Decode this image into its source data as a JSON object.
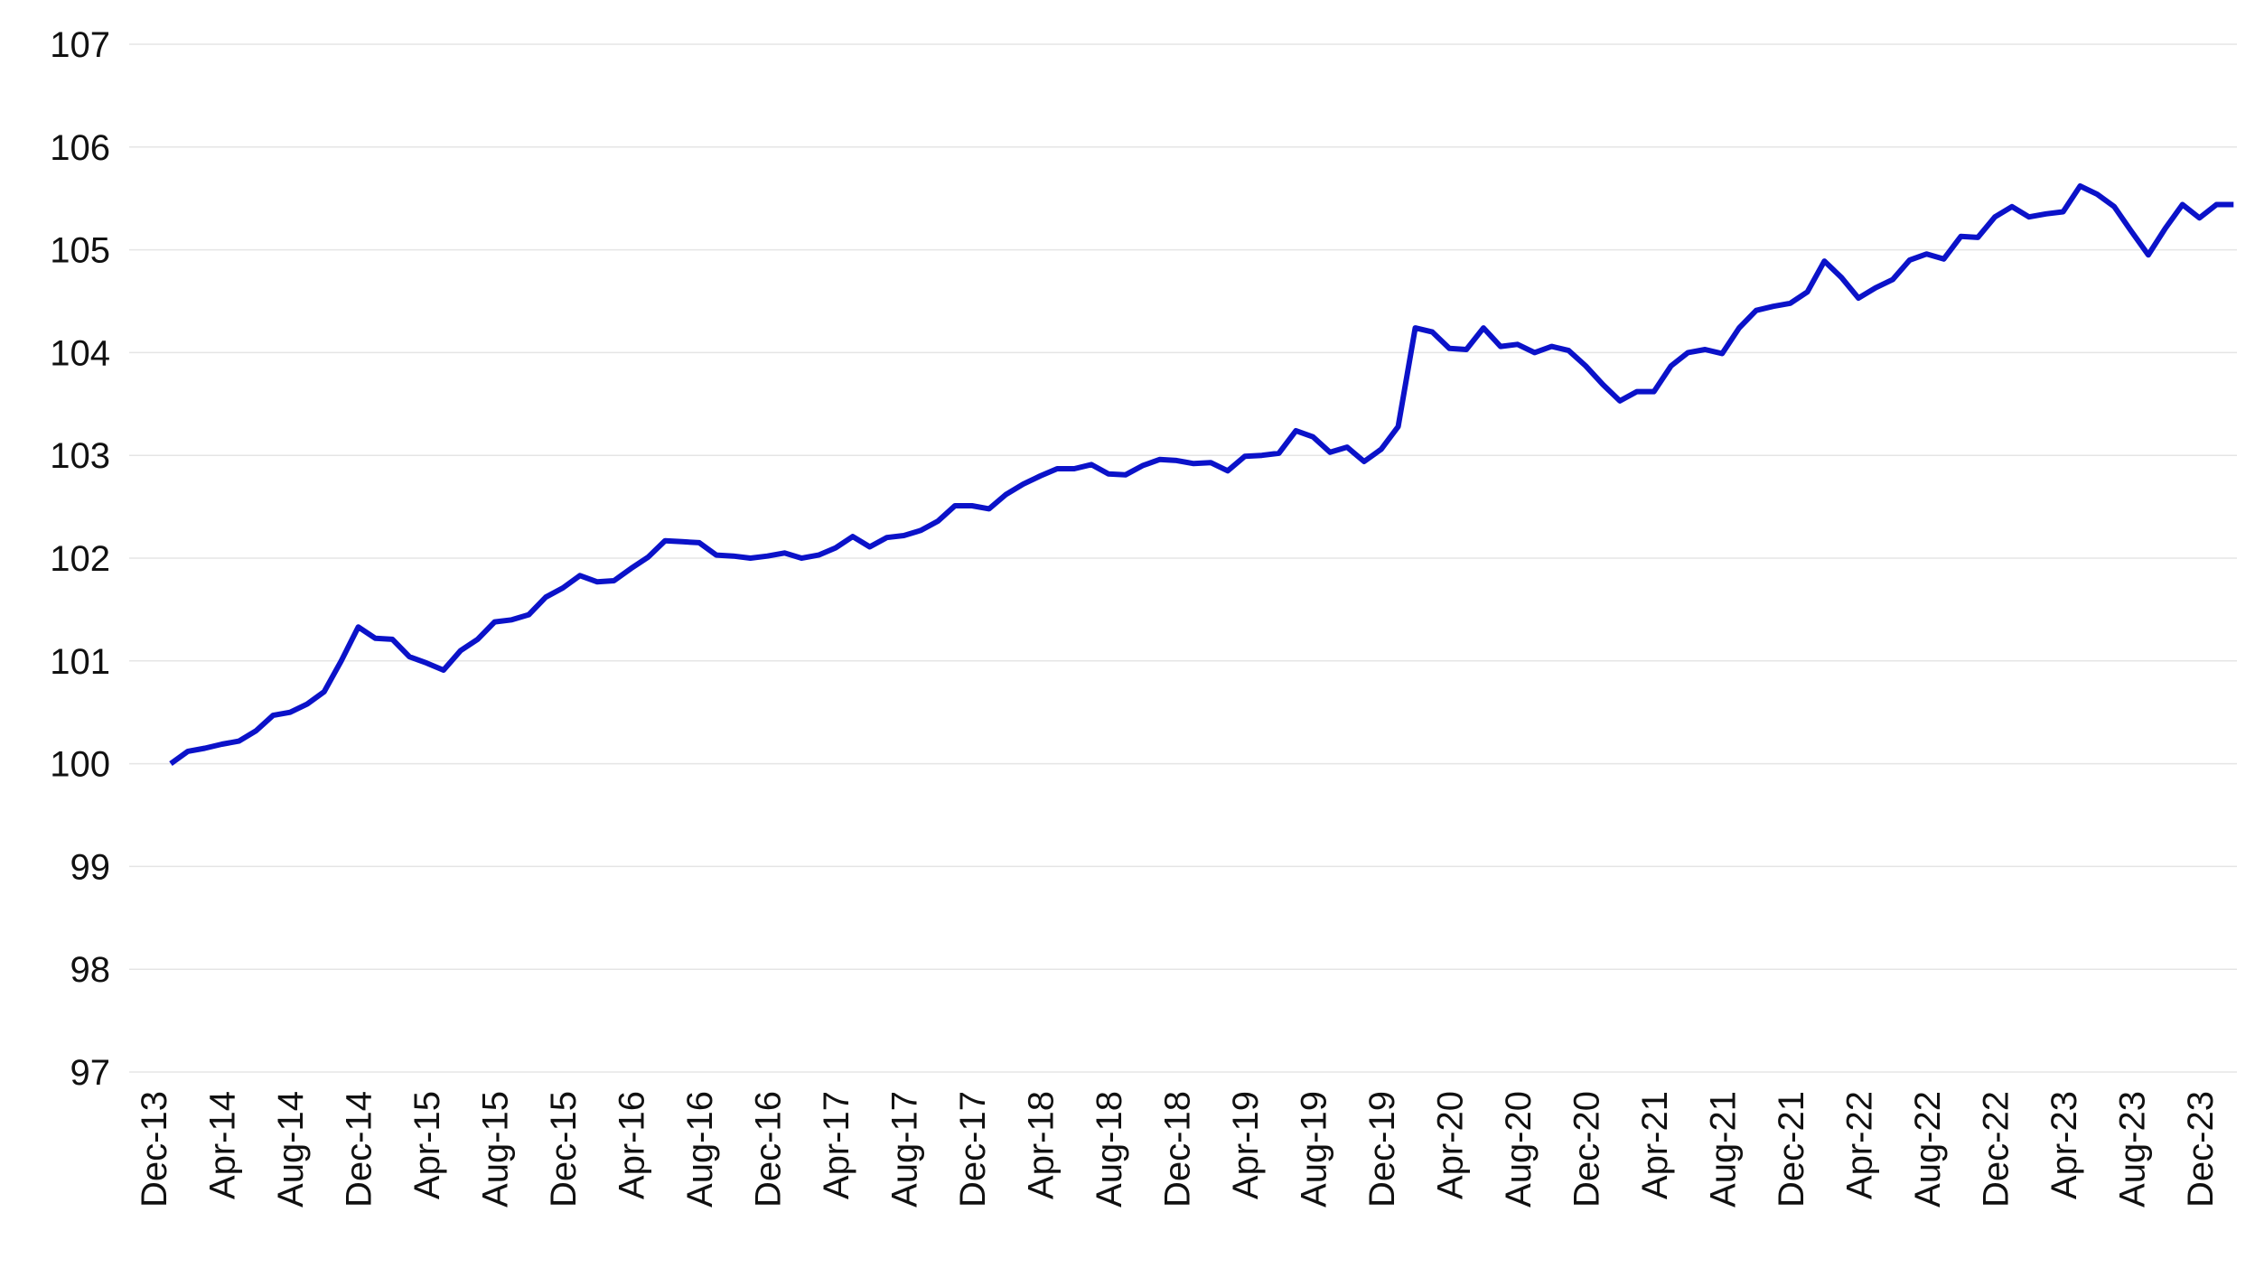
{
  "chart_data": {
    "type": "line",
    "title": "",
    "xlabel": "",
    "ylabel": "",
    "ylim": [
      97,
      107
    ],
    "yticks": [
      "97",
      "98",
      "99",
      "100",
      "101",
      "102",
      "103",
      "104",
      "105",
      "106",
      "107"
    ],
    "grid": true,
    "legend": "none",
    "line_color": "#0b12c9",
    "x_tick_labels": [
      "Dec-13",
      "Apr-14",
      "Aug-14",
      "Dec-14",
      "Apr-15",
      "Aug-15",
      "Dec-15",
      "Apr-16",
      "Aug-16",
      "Dec-16",
      "Apr-17",
      "Aug-17",
      "Dec-17",
      "Apr-18",
      "Aug-18",
      "Dec-18",
      "Apr-19",
      "Aug-19",
      "Dec-19",
      "Apr-20",
      "Aug-20",
      "Dec-20",
      "Apr-21",
      "Aug-21",
      "Dec-21",
      "Apr-22",
      "Aug-22",
      "Dec-22",
      "Apr-23",
      "Aug-23",
      "Dec-23"
    ],
    "x_start": "Jan-14",
    "x_step": "1 month",
    "series": [
      {
        "values": [
          100.0,
          100.12,
          100.15,
          100.19,
          100.22,
          100.32,
          100.47,
          100.5,
          100.58,
          100.7,
          101.0,
          101.33,
          101.22,
          101.21,
          101.04,
          100.98,
          100.91,
          101.1,
          101.21,
          101.38,
          101.4,
          101.45,
          101.62,
          101.71,
          101.83,
          101.77,
          101.78,
          101.9,
          102.01,
          102.17,
          102.16,
          102.15,
          102.03,
          102.02,
          102.0,
          102.02,
          102.05,
          102.0,
          102.03,
          102.1,
          102.21,
          102.11,
          102.2,
          102.22,
          102.27,
          102.36,
          102.51,
          102.51,
          102.48,
          102.62,
          102.72,
          102.8,
          102.87,
          102.87,
          102.91,
          102.82,
          102.81,
          102.9,
          102.96,
          102.95,
          102.92,
          102.93,
          102.85,
          102.99,
          103.0,
          103.02,
          103.24,
          103.18,
          103.03,
          103.08,
          102.94,
          103.06,
          103.28,
          104.24,
          104.2,
          104.04,
          104.03,
          104.24,
          104.06,
          104.08,
          104.0,
          104.06,
          104.02,
          103.87,
          103.69,
          103.53,
          103.62,
          103.62,
          103.87,
          104.0,
          104.03,
          103.99,
          104.24,
          104.41,
          104.45,
          104.48,
          104.59,
          104.89,
          104.73,
          104.53,
          104.63,
          104.71,
          104.9,
          104.96,
          104.91,
          105.13,
          105.12,
          105.32,
          105.42,
          105.32,
          105.35,
          105.37,
          105.62,
          105.54,
          105.42,
          105.18,
          104.95,
          105.21,
          105.44,
          105.31,
          105.44,
          105.44
        ]
      }
    ]
  }
}
